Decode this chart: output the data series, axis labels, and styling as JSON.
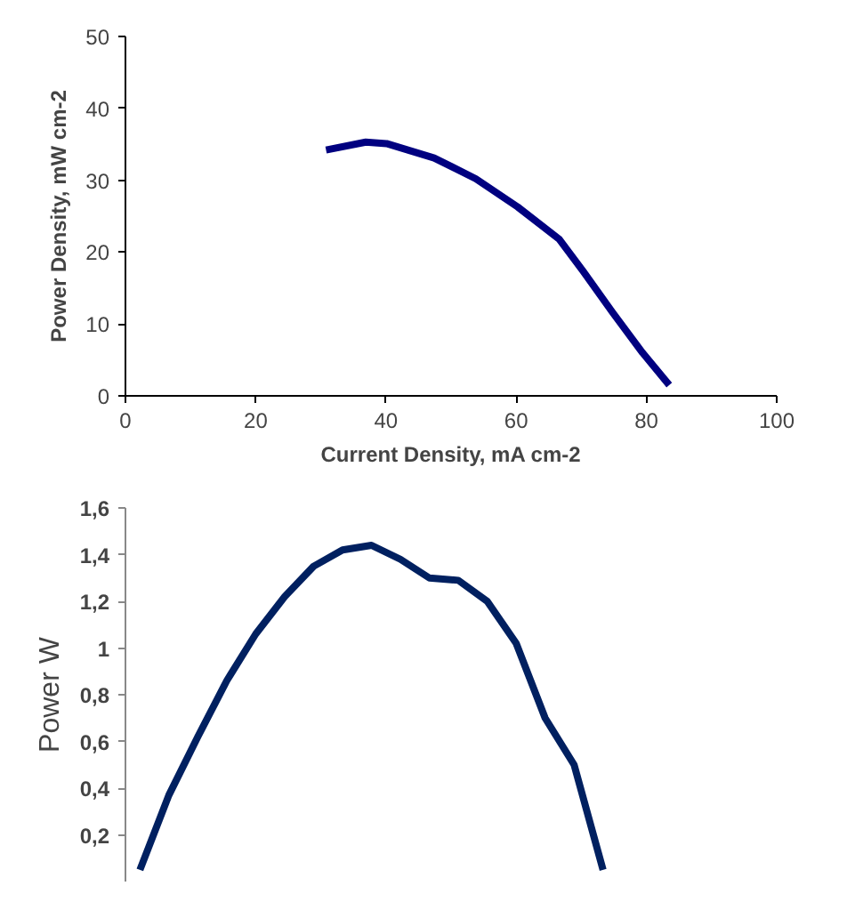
{
  "chart_data": [
    {
      "type": "line",
      "xlabel": "Current Density, mA cm-2",
      "ylabel": "Power Density, mW cm-2",
      "x": [
        30.8,
        36.9,
        40.1,
        47.4,
        53.8,
        60.2,
        66.6,
        70.3,
        74.8,
        79.4,
        83.5
      ],
      "xlim": [
        0,
        100
      ],
      "xticks": [
        0,
        20,
        40,
        60,
        80,
        100
      ],
      "ylim": [
        0,
        50
      ],
      "yticks": [
        0,
        10,
        20,
        30,
        40,
        50
      ],
      "grid": false,
      "series": [
        {
          "color": "#000080",
          "values": [
            34.2,
            35.3,
            35.1,
            33.1,
            30.2,
            26.3,
            21.8,
            17.3,
            11.6,
            6.0,
            1.5
          ]
        }
      ]
    },
    {
      "type": "line",
      "ylabel": "Power W",
      "categories": [
        null,
        null,
        null,
        null,
        null,
        null,
        null,
        null,
        null,
        null,
        null,
        null,
        null,
        null,
        null,
        null,
        null
      ],
      "ylim": [
        0,
        1.6
      ],
      "yticks": [
        {
          "value": 0.2,
          "label": "0,2"
        },
        {
          "value": 0.4,
          "label": "0,4"
        },
        {
          "value": 0.6,
          "label": "0,6"
        },
        {
          "value": 0.8,
          "label": "0,8"
        },
        {
          "value": 1,
          "label": "1"
        },
        {
          "value": 1.2,
          "label": "1,2"
        },
        {
          "value": 1.4,
          "label": "1,4"
        },
        {
          "value": 1.6,
          "label": "1,6"
        }
      ],
      "tick_labels": "y",
      "grid": false,
      "series": [
        {
          "color": "#002060",
          "values": [
            0.05,
            0.37,
            0.62,
            0.86,
            1.06,
            1.22,
            1.35,
            1.42,
            1.44,
            1.38,
            1.3,
            1.29,
            1.2,
            1.02,
            0.7,
            0.5,
            0.05
          ]
        }
      ]
    }
  ]
}
